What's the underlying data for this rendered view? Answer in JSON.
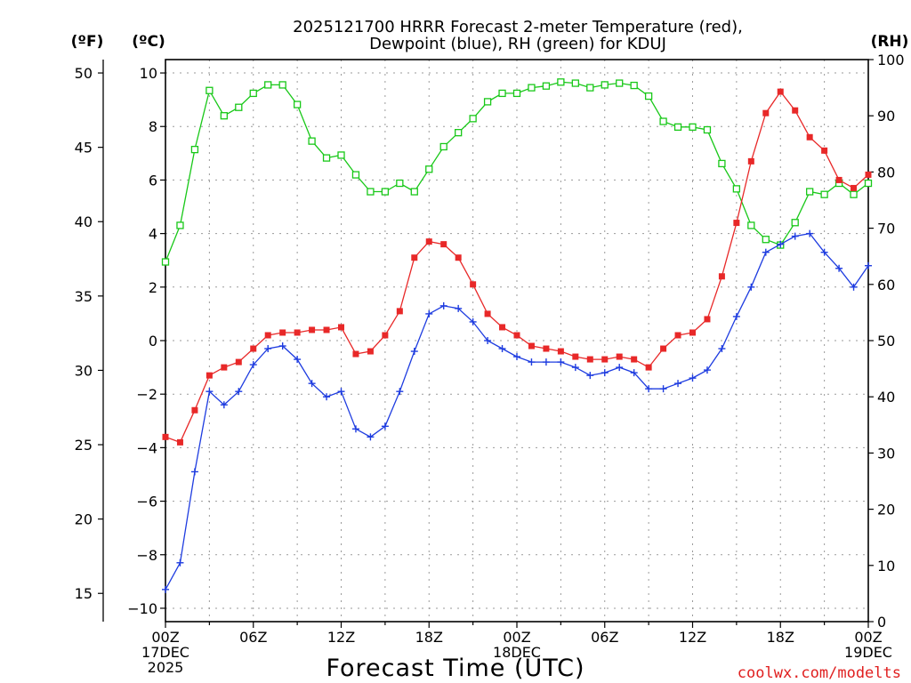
{
  "title": {
    "line1": "2025121700 HRRR Forecast 2-meter Temperature (red),",
    "line2": "Dewpoint (blue), RH (green) for KDUJ"
  },
  "axis_units": {
    "fahrenheit": "(ºF)",
    "celsius": "(ºC)",
    "rh": "(RH)"
  },
  "xlabel": "Forecast Time (UTC)",
  "credit": "coolwx.com/modelts",
  "colors": {
    "temperature": "#e82828",
    "dewpoint": "#1e3ce0",
    "rh": "#18c818",
    "axis": "#000000",
    "grid": "#9a9a9a",
    "credit": "#e02020"
  },
  "chart_data": {
    "type": "line",
    "title": "2025121700 HRRR Forecast 2-meter Temperature (red), Dewpoint (blue), RH (green) for KDUJ",
    "xlabel": "Forecast Time (UTC)",
    "x_unit": "forecast hour from 2025-12-17 00Z",
    "x": [
      0,
      1,
      2,
      3,
      4,
      5,
      6,
      7,
      8,
      9,
      10,
      11,
      12,
      13,
      14,
      15,
      16,
      17,
      18,
      19,
      20,
      21,
      22,
      23,
      24,
      25,
      26,
      27,
      28,
      29,
      30,
      31,
      32,
      33,
      34,
      35,
      36,
      37,
      38,
      39,
      40,
      41,
      42,
      43,
      44,
      45,
      46,
      47,
      48
    ],
    "xlim": [
      0,
      48
    ],
    "x_ticks": [
      {
        "x": 0,
        "lines": [
          "00Z",
          "17DEC",
          "2025"
        ]
      },
      {
        "x": 6,
        "lines": [
          "06Z"
        ]
      },
      {
        "x": 12,
        "lines": [
          "12Z"
        ]
      },
      {
        "x": 18,
        "lines": [
          "18Z"
        ]
      },
      {
        "x": 24,
        "lines": [
          "00Z",
          "18DEC"
        ]
      },
      {
        "x": 30,
        "lines": [
          "06Z"
        ]
      },
      {
        "x": 36,
        "lines": [
          "12Z"
        ]
      },
      {
        "x": 42,
        "lines": [
          "18Z"
        ]
      },
      {
        "x": 48,
        "lines": [
          "00Z",
          "19DEC"
        ]
      }
    ],
    "y_left_celsius": {
      "label": "(ºC)",
      "ylim": [
        -10.5,
        10.5
      ],
      "ticks": [
        -10,
        -8,
        -6,
        -4,
        -2,
        0,
        2,
        4,
        6,
        8,
        10
      ]
    },
    "y_left_fahrenheit": {
      "label": "(ºF)",
      "ylim": [
        13.1,
        50.9
      ],
      "ticks": [
        15,
        20,
        25,
        30,
        35,
        40,
        45,
        50
      ]
    },
    "y_right_rh": {
      "label": "(RH)",
      "ylim": [
        0,
        100
      ],
      "ticks": [
        0,
        10,
        20,
        30,
        40,
        50,
        60,
        70,
        80,
        90,
        100
      ]
    },
    "grid": true,
    "series": [
      {
        "name": "Temperature",
        "axis": "celsius",
        "marker": "filled-square",
        "values": [
          -3.6,
          -3.8,
          -2.6,
          -1.3,
          -1.0,
          -0.8,
          -0.3,
          0.2,
          0.3,
          0.3,
          0.4,
          0.4,
          0.5,
          -0.5,
          -0.4,
          0.2,
          1.1,
          3.1,
          3.7,
          3.6,
          3.1,
          2.1,
          1.0,
          0.5,
          0.2,
          -0.2,
          -0.3,
          -0.4,
          -0.6,
          -0.7,
          -0.7,
          -0.6,
          -0.7,
          -1.0,
          -0.3,
          0.2,
          0.3,
          0.8,
          2.4,
          4.4,
          6.7,
          8.5,
          9.3,
          8.6,
          7.6,
          7.1,
          6.0,
          5.7,
          6.2
        ]
      },
      {
        "name": "Dewpoint",
        "axis": "celsius",
        "marker": "plus",
        "values": [
          -9.3,
          -8.3,
          -4.9,
          -1.9,
          -2.4,
          -1.9,
          -0.9,
          -0.3,
          -0.2,
          -0.7,
          -1.6,
          -2.1,
          -1.9,
          -3.3,
          -3.6,
          -3.2,
          -1.9,
          -0.4,
          1.0,
          1.3,
          1.2,
          0.7,
          0.0,
          -0.3,
          -0.6,
          -0.8,
          -0.8,
          -0.8,
          -1.0,
          -1.3,
          -1.2,
          -1.0,
          -1.2,
          -1.8,
          -1.8,
          -1.6,
          -1.4,
          -1.1,
          -0.3,
          0.9,
          2.0,
          3.3,
          3.6,
          3.9,
          4.0,
          3.3,
          2.7,
          2.0,
          2.8
        ]
      },
      {
        "name": "RH",
        "axis": "rh",
        "marker": "open-square",
        "values": [
          64,
          70.5,
          84,
          94.5,
          90,
          91.5,
          94,
          95.5,
          95.5,
          92,
          85.5,
          82.5,
          83,
          79.5,
          76.5,
          76.5,
          78,
          76.5,
          80.5,
          84.5,
          87,
          89.5,
          92.5,
          94,
          94,
          95,
          95.3,
          96,
          95.8,
          95,
          95.5,
          95.8,
          95.4,
          93.5,
          89,
          88,
          88,
          87.5,
          81.5,
          77,
          70.5,
          68,
          67,
          71,
          76.5,
          76,
          78,
          76,
          78
        ]
      }
    ]
  }
}
